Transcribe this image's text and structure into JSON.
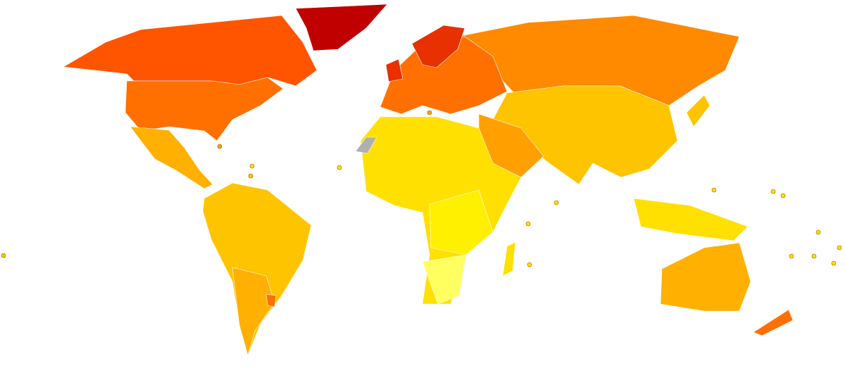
{
  "map": {
    "palette": [
      "#c00000",
      "#e83000",
      "#ff5500",
      "#ff7000",
      "#ff8a00",
      "#ffa000",
      "#ffb000",
      "#ffc400",
      "#ffe000",
      "#fff000",
      "#ffff60",
      "#b0b0b0"
    ]
  }
}
